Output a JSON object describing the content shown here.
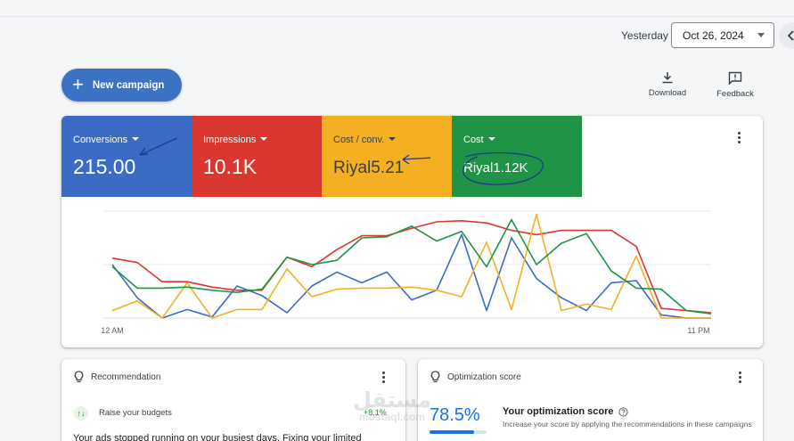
{
  "header": {
    "date_range_label": "Yesterday",
    "date_value": "Oct 26, 2024",
    "new_campaign_label": "New campaign",
    "download_label": "Download",
    "feedback_label": "Feedback"
  },
  "metrics": [
    {
      "label": "Conversions",
      "value": "215.00",
      "color": "#3b6bc4"
    },
    {
      "label": "Impressions",
      "value": "10.1K",
      "color": "#db3731"
    },
    {
      "label": "Cost / conv.",
      "value": "Riyal5.21",
      "color": "#f4b022"
    },
    {
      "label": "Cost",
      "value": "Riyal1.12K",
      "color": "#1f9446"
    }
  ],
  "chart_data": {
    "type": "line",
    "x_start_label": "12 AM",
    "x_end_label": "11 PM",
    "grid": true,
    "ylim": [
      0,
      100
    ],
    "series": [
      {
        "metric": "Conversions",
        "color": "#3b6bc4",
        "values": [
          50,
          19,
          0,
          8,
          1,
          30,
          21,
          5,
          30,
          43,
          33,
          43,
          17,
          26,
          78,
          7,
          75,
          37,
          19,
          7,
          33,
          35,
          3,
          0,
          0
        ]
      },
      {
        "metric": "Impressions",
        "color": "#db3731",
        "values": [
          56,
          52,
          34,
          34,
          29,
          26,
          26,
          57,
          48,
          64,
          77,
          77,
          84,
          90,
          91,
          89,
          82,
          78,
          82,
          82,
          82,
          67,
          9,
          7,
          5
        ]
      },
      {
        "metric": "Cost / conv.",
        "color": "#f4b022",
        "values": [
          7,
          16,
          0,
          33,
          0,
          8,
          8,
          46,
          20,
          27,
          28,
          28,
          29,
          26,
          20,
          71,
          8,
          97,
          7,
          13,
          8,
          58,
          0,
          0,
          0
        ]
      },
      {
        "metric": "Cost",
        "color": "#1f9446",
        "values": [
          48,
          28,
          28,
          29,
          26,
          24,
          27,
          57,
          50,
          54,
          75,
          76,
          86,
          72,
          81,
          48,
          92,
          50,
          70,
          79,
          44,
          28,
          27,
          7,
          4
        ]
      }
    ]
  },
  "recommendation": {
    "title": "Recommendation",
    "item_name": "Raise your budgets",
    "item_delta": "+8.1%",
    "body": "Your ads stopped running on your busiest days. Fixing your limited"
  },
  "optimization": {
    "title": "Optimization score",
    "score": "78.5%",
    "score_fraction": 0.785,
    "heading": "Your optimization score",
    "description": "Increase your score by applying the recommendations in these campaigns"
  },
  "watermark": {
    "arabic": "مستقل",
    "latin": "mostaql.com"
  }
}
